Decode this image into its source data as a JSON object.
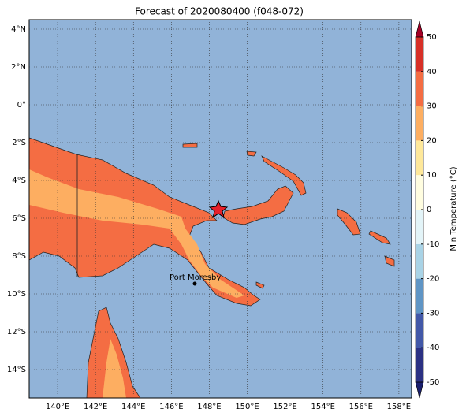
{
  "title": "Forecast of 2020080400 (f048-072)",
  "map": {
    "lon_range": [
      138.5,
      158.67
    ],
    "lat_range": [
      -15.5,
      4.5
    ],
    "lon_ticks": [
      {
        "value": 140,
        "label": "140°E"
      },
      {
        "value": 142,
        "label": "142°E"
      },
      {
        "value": 144,
        "label": "144°E"
      },
      {
        "value": 146,
        "label": "146°E"
      },
      {
        "value": 148,
        "label": "148°E"
      },
      {
        "value": 150,
        "label": "150°E"
      },
      {
        "value": 152,
        "label": "152°E"
      },
      {
        "value": 154,
        "label": "154°E"
      },
      {
        "value": 156,
        "label": "156°E"
      },
      {
        "value": 158,
        "label": "158°E"
      }
    ],
    "lat_ticks": [
      {
        "value": 4,
        "label": "4°N"
      },
      {
        "value": 2,
        "label": "2°N"
      },
      {
        "value": 0,
        "label": "0°"
      },
      {
        "value": -2,
        "label": "2°S"
      },
      {
        "value": -4,
        "label": "4°S"
      },
      {
        "value": -6,
        "label": "6°S"
      },
      {
        "value": -8,
        "label": "8°S"
      },
      {
        "value": -10,
        "label": "10°S"
      },
      {
        "value": -12,
        "label": "12°S"
      },
      {
        "value": -14,
        "label": "14°S"
      }
    ],
    "city": "Port Moresby"
  },
  "colorbar": {
    "label": "Min Temperature (°C)",
    "ticks": [
      -50,
      -40,
      -30,
      -20,
      -10,
      0,
      10,
      20,
      30,
      40,
      50
    ],
    "colors": [
      "#2b3183",
      "#4258a8",
      "#5f95c5",
      "#a9d3e6",
      "#e3f4f8",
      "#fffde0",
      "#fee89a",
      "#fdae61",
      "#f46d43",
      "#d73027"
    ],
    "extend_colors": [
      "#1a1f6e",
      "#a50026"
    ]
  }
}
